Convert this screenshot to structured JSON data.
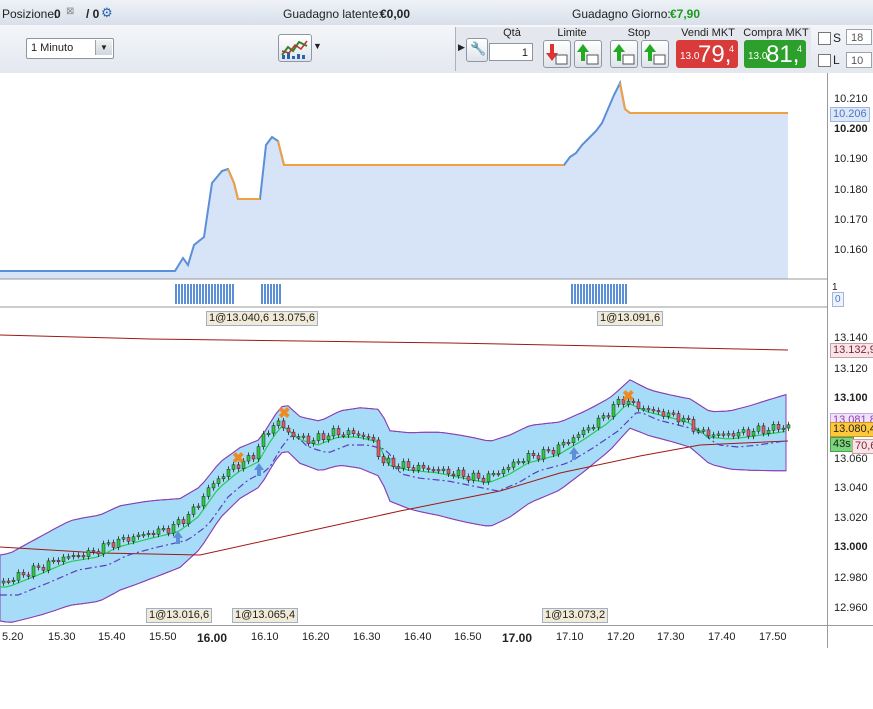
{
  "status": {
    "position_label": "Posizione:",
    "position_value": "0",
    "position_slash": "/ 0",
    "latent_label": "Guadagno latente:",
    "latent_value": "€0,00",
    "daily_label": "Guadagno Giorno:",
    "daily_value": "€7,90",
    "daily_color": "#1a9a1a"
  },
  "toolbar": {
    "timeframe": "1 Minuto",
    "qty_label": "Qtà",
    "qty_value": "1",
    "limit_label": "Limite",
    "stop_label": "Stop",
    "sell_label": "Vendi MKT",
    "sell_prefix": "13.0",
    "sell_big": "79,",
    "sell_sup": "4",
    "buy_label": "Compra MKT",
    "buy_prefix": "13.0",
    "buy_big": "81,",
    "buy_sup": "4",
    "s_label": "S",
    "s_value": "18",
    "l_label": "L",
    "l_value": "10",
    "sell_color": "#d93a3a",
    "buy_color": "#2c9f2c"
  },
  "top_panel": {
    "ticks": [
      "10.210",
      "10.200",
      "10.190",
      "10.180",
      "10.170",
      "10.160"
    ],
    "current_tag": "10.206"
  },
  "volume_panel": {
    "ticks": [
      "1",
      "0"
    ]
  },
  "main_panel": {
    "ticks": [
      "13.140",
      "13.120",
      "13.100",
      "13.080",
      "13.060",
      "13.040",
      "13.020",
      "13.000",
      "12.980",
      "12.960"
    ],
    "tag_ma": "13.132,9",
    "tag_upper": "13.081,8",
    "tag_price": "13.080,4",
    "tag_timer": "43s",
    "tag_rsi": "70,6",
    "trade_labels_top": [
      "1@13.040,6 13.075,6",
      "1@13.091,6"
    ],
    "trade_labels_bottom": [
      "1@13.016,6",
      "1@13.065,4",
      "1@13.073,2"
    ]
  },
  "xaxis": {
    "labels": [
      "5.20",
      "15.30",
      "15.40",
      "15.50",
      "16.00",
      "16.10",
      "16.20",
      "16.30",
      "16.40",
      "16.50",
      "17.00",
      "17.10",
      "17.20",
      "17.30",
      "17.40",
      "17.50"
    ]
  }
}
